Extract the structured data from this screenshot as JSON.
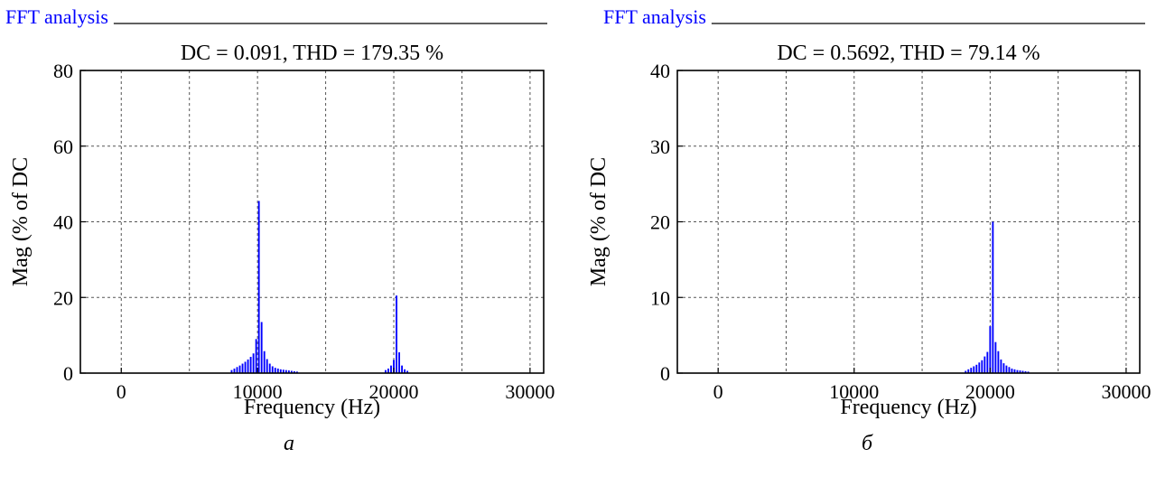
{
  "panels": [
    {
      "header_title": "FFT analysis",
      "caption": "а",
      "chart_data": {
        "type": "bar",
        "title": "DC = 0.091, THD = 179.35 %",
        "xlabel": "Frequency (Hz)",
        "ylabel": "Mag (% of DC",
        "xlim": [
          -3000,
          31000
        ],
        "ylim": [
          0,
          80
        ],
        "x_ticks": [
          0,
          10000,
          20000,
          30000
        ],
        "x_tick_labels": [
          "0",
          "10000",
          "20000",
          "30000"
        ],
        "y_ticks": [
          0,
          20,
          40,
          60,
          80
        ],
        "y_tick_labels": [
          "0",
          "20",
          "40",
          "60",
          "80"
        ],
        "grid": true,
        "bar_color": "#0000ff",
        "x": [
          8100,
          8300,
          8500,
          8700,
          8900,
          9100,
          9300,
          9500,
          9700,
          9900,
          10100,
          10300,
          10500,
          10700,
          10900,
          11100,
          11300,
          11500,
          11700,
          11900,
          12100,
          12300,
          12500,
          12700,
          12900,
          19400,
          19600,
          19800,
          20000,
          20200,
          20400,
          20600,
          20800,
          21000
        ],
        "values": [
          0.8,
          1.2,
          1.6,
          2.0,
          2.5,
          3.0,
          3.6,
          4.3,
          5.2,
          9.0,
          45.5,
          13.5,
          5.8,
          3.7,
          2.5,
          1.8,
          1.4,
          1.2,
          1.0,
          0.9,
          0.8,
          0.7,
          0.6,
          0.5,
          0.4,
          0.8,
          1.2,
          2.0,
          3.5,
          20.5,
          5.5,
          2.0,
          1.0,
          0.6
        ]
      }
    },
    {
      "header_title": "FFT analysis",
      "caption": "б",
      "chart_data": {
        "type": "bar",
        "title": "DC = 0.5692, THD = 79.14 %",
        "xlabel": "Frequency (Hz)",
        "ylabel": "Mag (% of DC",
        "xlim": [
          -3000,
          31000
        ],
        "ylim": [
          0,
          40
        ],
        "x_ticks": [
          0,
          10000,
          20000,
          30000
        ],
        "x_tick_labels": [
          "0",
          "10000",
          "20000",
          "30000"
        ],
        "y_ticks": [
          0,
          10,
          20,
          30,
          40
        ],
        "y_tick_labels": [
          "0",
          "10",
          "20",
          "30",
          "40"
        ],
        "grid": true,
        "bar_color": "#0000ff",
        "x": [
          18200,
          18400,
          18600,
          18800,
          19000,
          19200,
          19400,
          19600,
          19800,
          20000,
          20200,
          20400,
          20600,
          20800,
          21000,
          21200,
          21400,
          21600,
          21800,
          22000,
          22200,
          22400,
          22600,
          22800
        ],
        "values": [
          0.3,
          0.5,
          0.7,
          0.9,
          1.1,
          1.4,
          1.7,
          2.2,
          2.8,
          6.2,
          20.0,
          4.1,
          2.9,
          1.8,
          1.3,
          1.0,
          0.8,
          0.6,
          0.5,
          0.4,
          0.35,
          0.3,
          0.25,
          0.2
        ]
      }
    }
  ]
}
